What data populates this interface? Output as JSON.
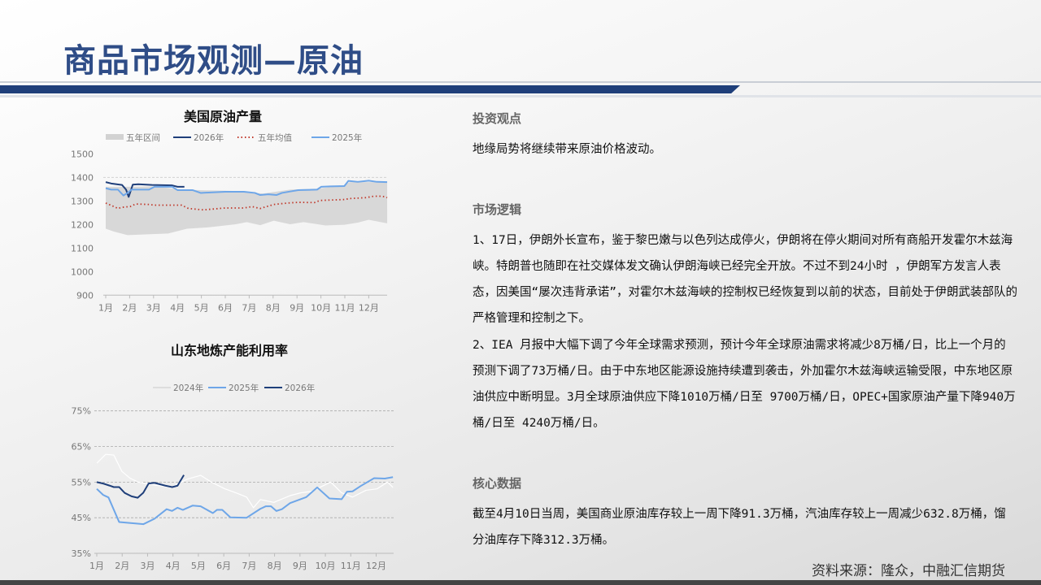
{
  "header": {
    "title": "商品市场观测—原油"
  },
  "chart_data": [
    {
      "type": "line",
      "title": "美国原油产量",
      "xlabel": "",
      "ylabel": "",
      "ylim": [
        900,
        1500
      ],
      "yticks": [
        900,
        1000,
        1100,
        1200,
        1300,
        1400,
        1500
      ],
      "xticks": [
        "1月",
        "2月",
        "3月",
        "4月",
        "5月",
        "6月",
        "7月",
        "8月",
        "9月",
        "10月",
        "11月",
        "12月"
      ],
      "x_unit": "month",
      "grid": "dashed at 1400",
      "legend": "top",
      "series": [
        {
          "name": "五年区间",
          "type": "band",
          "color": "#d2d2d2",
          "upper": {
            "x": [
              1.0,
              1.91,
              3.04,
              4.17,
              6.44,
              7.58,
              8.71,
              9.84,
              10.98,
              11.2,
              12.77
            ],
            "y": [
              1360,
              1360,
              1362,
              1348,
              1342,
              1331,
              1348,
              1352,
              1366,
              1380,
              1380
            ]
          },
          "lower": {
            "x": [
              1.0,
              1.34,
              1.91,
              3.61,
              4.4,
              5.31,
              6.44,
              6.9,
              7.46,
              8.03,
              8.71,
              9.28,
              10.19,
              10.98,
              11.54,
              12.0,
              12.77
            ],
            "y": [
              1182,
              1170,
              1155,
              1162,
              1182,
              1188,
              1201,
              1210,
              1197,
              1216,
              1201,
              1210,
              1196,
              1199,
              1208,
              1220,
              1205
            ]
          }
        },
        {
          "name": "2026年",
          "color": "#1f3f7a",
          "x": [
            1.0,
            1.23,
            1.68,
            1.85,
            1.96,
            2.13,
            2.36,
            2.93,
            3.78,
            4.0,
            4.29
          ],
          "y": [
            1380,
            1374,
            1368,
            1348,
            1317,
            1369,
            1371,
            1368,
            1366,
            1360,
            1360
          ]
        },
        {
          "name": "五年均值",
          "color": "#c0392b",
          "style": "dotted",
          "x": [
            1.0,
            1.28,
            1.51,
            1.68,
            2.02,
            2.25,
            2.81,
            3.04,
            4.17,
            4.46,
            5.08,
            5.99,
            6.78,
            7.12,
            7.46,
            8.03,
            8.6,
            9.05,
            9.73,
            9.96,
            10.98,
            11.2,
            11.88,
            12.22,
            12.56,
            12.77
          ],
          "y": [
            1291,
            1279,
            1268,
            1273,
            1276,
            1287,
            1285,
            1282,
            1282,
            1268,
            1262,
            1270,
            1270,
            1276,
            1268,
            1285,
            1291,
            1294,
            1293,
            1302,
            1306,
            1310,
            1314,
            1320,
            1320,
            1314
          ]
        },
        {
          "name": "2025年",
          "color": "#6ea6e8",
          "x": [
            1.0,
            1.23,
            1.51,
            1.74,
            1.91,
            2.08,
            2.81,
            3.04,
            3.78,
            4.0,
            4.63,
            4.97,
            5.99,
            6.78,
            7.24,
            7.46,
            7.8,
            8.14,
            8.37,
            8.71,
            9.05,
            9.84,
            10.01,
            10.41,
            10.98,
            11.15,
            11.54,
            12.0,
            12.34,
            12.77
          ],
          "y": [
            1354,
            1348,
            1348,
            1323,
            1334,
            1348,
            1348,
            1360,
            1360,
            1346,
            1346,
            1334,
            1339,
            1339,
            1334,
            1325,
            1328,
            1325,
            1334,
            1340,
            1346,
            1348,
            1360,
            1362,
            1363,
            1385,
            1381,
            1386,
            1381,
            1380
          ]
        }
      ]
    },
    {
      "type": "line",
      "title": "山东地炼产能利用率",
      "xlabel": "",
      "ylabel": "",
      "ylim": [
        35,
        75
      ],
      "yticks": [
        "35%",
        "45%",
        "55%",
        "65%",
        "75%"
      ],
      "ytick_values": [
        35,
        45,
        55,
        65,
        75
      ],
      "xticks": [
        "1月",
        "2月",
        "3月",
        "4月",
        "5月",
        "6月",
        "7月",
        "8月",
        "9月",
        "10月",
        "11月",
        "12月"
      ],
      "x_unit": "month",
      "grid": "dashed horizontal",
      "legend": "top",
      "series": [
        {
          "name": "2024年",
          "color": "#ffffff",
          "x": [
            1.0,
            1.35,
            1.67,
            1.99,
            2.31,
            2.63,
            3.27,
            3.91,
            4.55,
            5.09,
            5.51,
            6.05,
            6.48,
            6.9,
            7.17,
            7.44,
            7.97,
            8.61,
            9.04,
            9.46,
            9.89,
            10.21,
            10.64,
            11.07,
            11.6,
            12.03,
            12.45,
            12.66
          ],
          "y": [
            60.3,
            62.8,
            62.6,
            58.0,
            56.1,
            55.0,
            54.2,
            53.5,
            55.8,
            56.9,
            55.0,
            53.1,
            52.0,
            50.8,
            47.8,
            50.1,
            49.3,
            51.2,
            52.0,
            52.4,
            53.9,
            55.0,
            52.0,
            50.8,
            52.7,
            53.1,
            55.0,
            53.5
          ]
        },
        {
          "name": "2025年",
          "color": "#6ea6e8",
          "x": [
            1.0,
            1.25,
            1.46,
            1.88,
            2.2,
            2.84,
            3.27,
            3.75,
            3.96,
            4.18,
            4.39,
            4.77,
            5.09,
            5.57,
            5.73,
            5.94,
            6.26,
            6.9,
            7.44,
            7.65,
            7.86,
            8.07,
            8.29,
            8.61,
            9.25,
            9.68,
            10.16,
            10.64,
            10.85,
            11.07,
            11.39,
            11.92,
            12.34,
            12.66
          ],
          "y": [
            53.1,
            51.4,
            50.7,
            43.8,
            43.6,
            43.2,
            44.7,
            47.4,
            46.9,
            47.8,
            47.2,
            48.4,
            48.2,
            46.3,
            47.2,
            47.2,
            45.1,
            45.0,
            47.5,
            48.2,
            48.2,
            46.9,
            47.4,
            49.1,
            50.8,
            53.5,
            50.4,
            50.2,
            52.3,
            52.4,
            53.9,
            56.1,
            56.0,
            56.4
          ]
        },
        {
          "name": "2026年",
          "color": "#1f3f7a",
          "x": [
            1.0,
            1.25,
            1.51,
            1.67,
            1.88,
            2.1,
            2.37,
            2.61,
            2.83,
            3.04,
            3.27,
            3.7,
            3.97,
            4.18,
            4.43
          ],
          "y": [
            55.0,
            54.6,
            54.0,
            53.6,
            53.6,
            51.96,
            51.0,
            50.6,
            52.0,
            54.6,
            54.8,
            54.0,
            53.6,
            54.0,
            57.0
          ]
        }
      ]
    }
  ],
  "sections": [
    {
      "heading": "投资观点",
      "paragraphs": [
        "地缘局势将继续带来原油价格波动。"
      ]
    },
    {
      "heading": "市场逻辑",
      "paragraphs": [
        "1、17日，伊朗外长宣布，鉴于黎巴嫩与以色列达成停火，伊朗将在停火期间对所有商船开发霍尔木兹海峡。特朗普也随即在社交媒体发文确认伊朗海峡已经完全开放。不过不到24小时 ，伊朗军方发言人表态，因美国“屡次违背承诺”，对霍尔木兹海峡的控制权已经恢复到以前的状态，目前处于伊朗武装部队的严格管理和控制之下。",
        "2、IEA 月报中大幅下调了今年全球需求预测，预计今年全球原油需求将减少8万桶/日，比上一个月的预测下调了73万桶/日。由于中东地区能源设施持续遭到袭击，外加霍尔木兹海峡运输受限，中东地区原油供应中断明显。3月全球原油供应下降1010万桶/日至 9700万桶/日，OPEC+国家原油产量下降940万桶/日至 4240万桶/日。"
      ]
    },
    {
      "heading": "核心数据",
      "paragraphs": [
        "截至4月10日当周，美国商业原油库存较上一周下降91.3万桶，汽油库存较上一周减少632.8万桶，馏分油库存下降312.3万桶。"
      ]
    }
  ],
  "footer": {
    "source": "资料来源：隆众，中融汇信期货"
  }
}
